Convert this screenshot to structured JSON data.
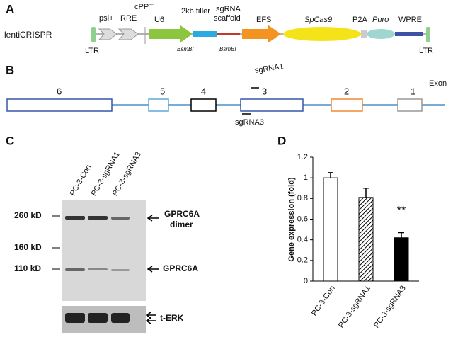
{
  "panel_a": {
    "label": "A",
    "row_label": "lentiCRISPR",
    "ltr_left": "LTR",
    "ltr_right": "LTR",
    "elements": [
      "psi+",
      "RRE",
      "cPPT",
      "U6",
      "2kb filler",
      "sgRNA",
      "scaffold",
      "EFS",
      "SpCas9",
      "P2A",
      "Puro",
      "WPRE"
    ],
    "sites": [
      "BsmBI",
      "BsmBI"
    ]
  },
  "panel_b": {
    "label": "B",
    "exon_title": "Exon",
    "exons": [
      "6",
      "5",
      "4",
      "3",
      "2",
      "1"
    ],
    "guides": [
      "sgRNA1",
      "sgRNA3"
    ]
  },
  "panel_c": {
    "label": "C",
    "lanes": [
      "PC-3-Con",
      "PC-3-sgRNA1",
      "PC-3-sgRNA3"
    ],
    "markers": [
      "260 kD",
      "160 kD",
      "110 kD"
    ],
    "bands": [
      "GPRC6A",
      "dimer",
      "GPRC6A",
      "t-ERK"
    ]
  },
  "panel_d": {
    "label": "D"
  },
  "chart_data": {
    "type": "bar",
    "ylabel": "Gene expression (fold)",
    "categories": [
      "PC-3-Con",
      "PC-3-sgRNA1",
      "PC-3-sgRNA3"
    ],
    "values": [
      1.0,
      0.81,
      0.42
    ],
    "errors": [
      0.05,
      0.09,
      0.05
    ],
    "colors": [
      "#ffffff",
      "#000000",
      "#000000"
    ],
    "patterns": [
      "solid",
      "hatch",
      "solid"
    ],
    "annotation": "**",
    "annotation_index": 2,
    "ylim": [
      0,
      1.2
    ],
    "yticks": [
      0,
      0.2,
      0.4,
      0.6,
      0.8,
      1,
      1.2
    ],
    "grid": false
  }
}
